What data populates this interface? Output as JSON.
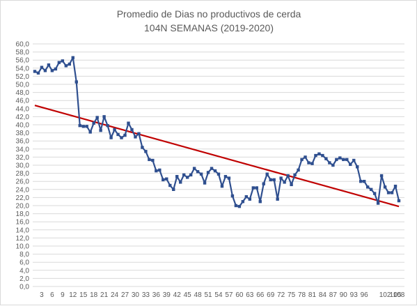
{
  "chart_data": {
    "type": "line",
    "title": "Promedio de Dias no productivos de cerda",
    "subtitle": "104N SEMANAS (2019-2020)",
    "xlabel": "",
    "ylabel": "",
    "ylim": [
      0,
      60
    ],
    "y_tick_step": 2,
    "y_tick_labels": [
      "0,0",
      "2,0",
      "4,0",
      "6,0",
      "8,0",
      "10,0",
      "12,0",
      "14,0",
      "16,0",
      "18,0",
      "20,0",
      "22,0",
      "24,0",
      "26,0",
      "28,0",
      "30,0",
      "32,0",
      "34,0",
      "36,0",
      "38,0",
      "40,0",
      "42,0",
      "44,0",
      "46,0",
      "48,0",
      "50,0",
      "52,0",
      "54,0",
      "56,0",
      "58,0",
      "60,0"
    ],
    "x_tick_labels": [
      "3",
      "6",
      "9",
      "12",
      "15",
      "18",
      "21",
      "24",
      "27",
      "30",
      "33",
      "36",
      "39",
      "42",
      "45",
      "48",
      "51",
      "54",
      "57",
      "60",
      "63",
      "66",
      "69",
      "72",
      "75",
      "78",
      "81",
      "84",
      "87",
      "90",
      "93",
      "96",
      "102",
      "105",
      "108"
    ],
    "grid": true,
    "legend": "none",
    "colors": {
      "series": "#2f4f8f",
      "trend": "#c00000",
      "grid": "#d9d9d9",
      "text": "#595959"
    },
    "series": [
      {
        "values": [
          53.2,
          52.8,
          54.2,
          53.4,
          54.8,
          53.4,
          53.8,
          55.4,
          55.8,
          54.6,
          55.0,
          56.6,
          50.6,
          39.8,
          39.6,
          39.6,
          38.2,
          40.4,
          41.8,
          38.6,
          42.0,
          39.8,
          36.8,
          38.8,
          37.6,
          36.8,
          37.4,
          40.4,
          38.8,
          37.0,
          37.8,
          34.4,
          33.4,
          31.4,
          31.2,
          28.6,
          28.8,
          26.4,
          26.6,
          25.0,
          24.0,
          27.2,
          25.8,
          27.6,
          27.0,
          27.6,
          29.2,
          28.4,
          27.8,
          25.6,
          28.2,
          29.2,
          28.6,
          27.8,
          24.8,
          27.2,
          26.8,
          22.4,
          20.0,
          19.8,
          21.0,
          22.2,
          21.6,
          24.4,
          24.4,
          21.0,
          25.4,
          27.8,
          26.4,
          26.4,
          21.6,
          26.8,
          25.8,
          27.4,
          25.2,
          27.6,
          28.8,
          31.4,
          32.0,
          30.6,
          30.4,
          32.4,
          32.8,
          32.4,
          31.6,
          30.6,
          30.0,
          31.4,
          31.8,
          31.4,
          31.4,
          30.2,
          31.2,
          29.6,
          26.0,
          26.0,
          24.6,
          24.0,
          23.0,
          20.6,
          27.4,
          24.6,
          23.2,
          23.2,
          24.8,
          21.2
        ]
      }
    ],
    "trendline": {
      "start": 44.8,
      "end": 19.8
    }
  }
}
